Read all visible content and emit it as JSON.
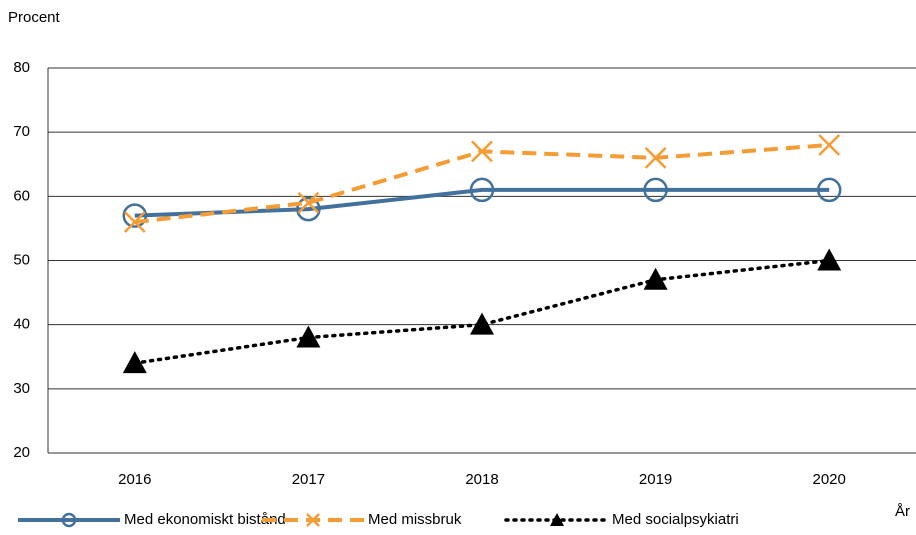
{
  "chart_data": {
    "type": "line",
    "y_label": "Procent",
    "x_label": "År",
    "categories": [
      "2016",
      "2017",
      "2018",
      "2019",
      "2020"
    ],
    "series": [
      {
        "name": "Med ekonomiskt bistånd",
        "color": "#41719c",
        "marker": "circle",
        "line_style": "solid",
        "values": [
          57,
          58,
          61,
          61,
          61
        ]
      },
      {
        "name": "Med missbruk",
        "color": "#f59c34",
        "marker": "x",
        "line_style": "dashed",
        "values": [
          56,
          59,
          67,
          66,
          68
        ]
      },
      {
        "name": "Med socialpsykiatri",
        "color": "#000000",
        "marker": "triangle",
        "line_style": "dotted",
        "values": [
          34,
          38,
          40,
          47,
          50
        ]
      }
    ],
    "ylim": [
      20,
      80
    ],
    "yticks": [
      20,
      30,
      40,
      50,
      60,
      70,
      80
    ],
    "grid": true,
    "legend": "bottom"
  }
}
